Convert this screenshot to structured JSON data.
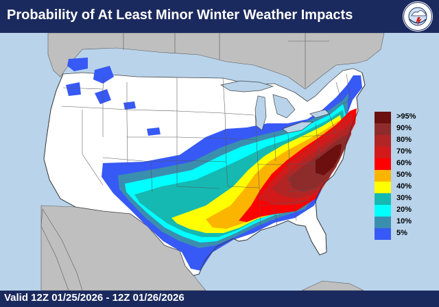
{
  "header": {
    "title": "Probability of At Least Minor Winter Weather Impacts",
    "logo_ring_text": "NATIONAL WEATHER SERVICE"
  },
  "legend": [
    {
      "label": ">95%",
      "color": "#6b0f0f"
    },
    {
      "label": "90%",
      "color": "#8e2c2c"
    },
    {
      "label": "80%",
      "color": "#b22525"
    },
    {
      "label": "70%",
      "color": "#d21a1a"
    },
    {
      "label": "60%",
      "color": "#ff0000"
    },
    {
      "label": "50%",
      "color": "#fbb500"
    },
    {
      "label": "40%",
      "color": "#ffff00"
    },
    {
      "label": "30%",
      "color": "#15b9b2"
    },
    {
      "label": "20%",
      "color": "#00ffff"
    },
    {
      "label": "10%",
      "color": "#3b8fae"
    },
    {
      "label": "5%",
      "color": "#3759f6"
    }
  ],
  "footer": {
    "valid_text": "Valid 12Z 01/25/2026  - 12Z 01/26/2026"
  },
  "colors": {
    "banner": "#1b2a5e",
    "ocean": "#b8d3ea",
    "foreign_land": "#bfbfbf",
    "conus_land": "#ffffff"
  }
}
